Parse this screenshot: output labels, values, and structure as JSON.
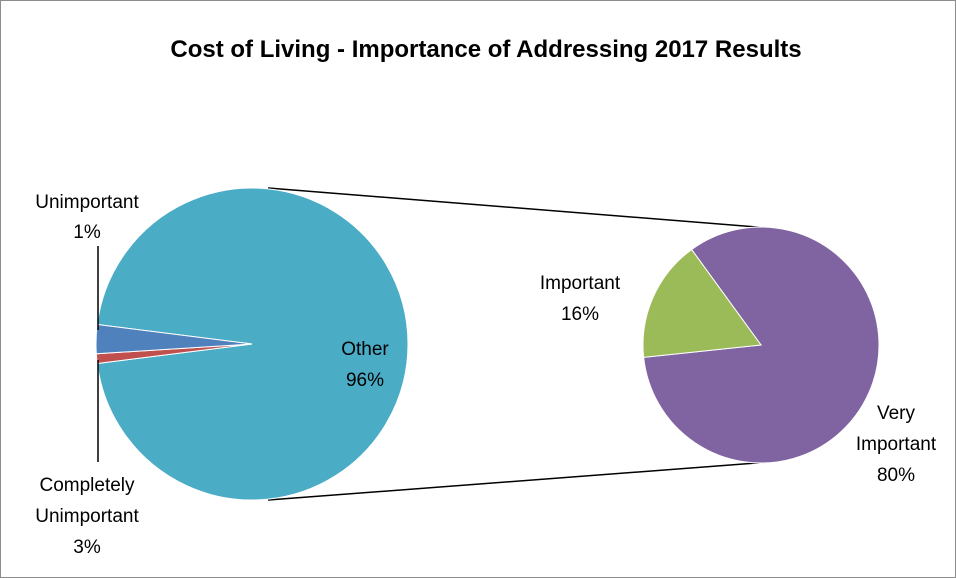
{
  "chart_data": {
    "type": "pie",
    "subtype": "pie-of-pie",
    "title": "Cost of  Living - Importance of Addressing 2017 Results",
    "main_pie": {
      "slices": [
        {
          "name": "Unimportant",
          "value": 1,
          "label_value": "1%",
          "color": "#C0504D"
        },
        {
          "name": "Completely Unimportant",
          "value": 3,
          "label_value": "3%",
          "color": "#4F81BD"
        },
        {
          "name": "Other",
          "value": 96,
          "label_value": "96%",
          "color": "#4BACC6"
        }
      ]
    },
    "secondary_pie": {
      "slices": [
        {
          "name": "Important",
          "value": 16,
          "label_value": "16%",
          "color": "#9BBB59"
        },
        {
          "name": "Very Important",
          "value": 80,
          "label_value": "80%",
          "color": "#8064A2"
        }
      ]
    },
    "labels": {
      "unimportant_name": "Unimportant",
      "unimportant_pct": "1%",
      "completely_line1": "Completely",
      "completely_line2": "Unimportant",
      "completely_pct": "3%",
      "other_name": "Other",
      "other_pct": "96%",
      "important_name": "Important",
      "important_pct": "16%",
      "very_line1": "Very",
      "very_line2": "Important",
      "very_pct": "80%"
    }
  }
}
